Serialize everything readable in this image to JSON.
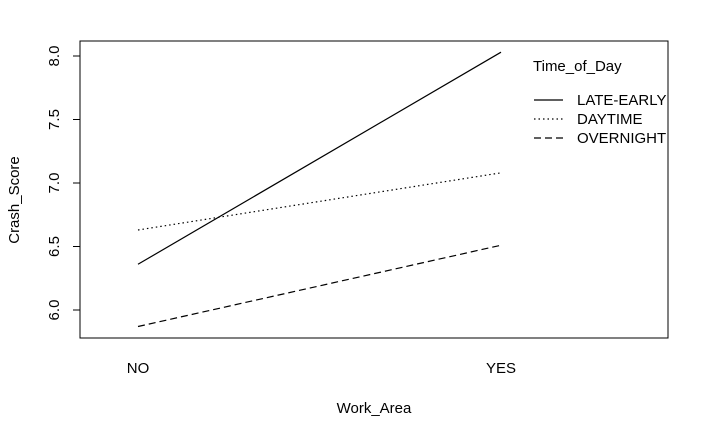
{
  "chart_data": {
    "type": "line",
    "xlabel": "Work_Area",
    "ylabel": "Crash_Score",
    "categories": [
      "NO",
      "YES"
    ],
    "yticks": [
      "6.0",
      "6.5",
      "7.0",
      "7.5",
      "8.0"
    ],
    "ylim": [
      5.8,
      8.07
    ],
    "grid": false,
    "legend": {
      "title": "Time_of_Day",
      "position": "top-right"
    },
    "series": [
      {
        "name": "LATE-EARLY",
        "line_style": "solid",
        "values": [
          6.36,
          8.03
        ]
      },
      {
        "name": "DAYTIME",
        "line_style": "dotted",
        "values": [
          6.63,
          7.08
        ]
      },
      {
        "name": "OVERNIGHT",
        "line_style": "dashed",
        "values": [
          5.87,
          6.51
        ]
      }
    ],
    "colors": {
      "line": "#000000",
      "background": "#ffffff"
    }
  }
}
